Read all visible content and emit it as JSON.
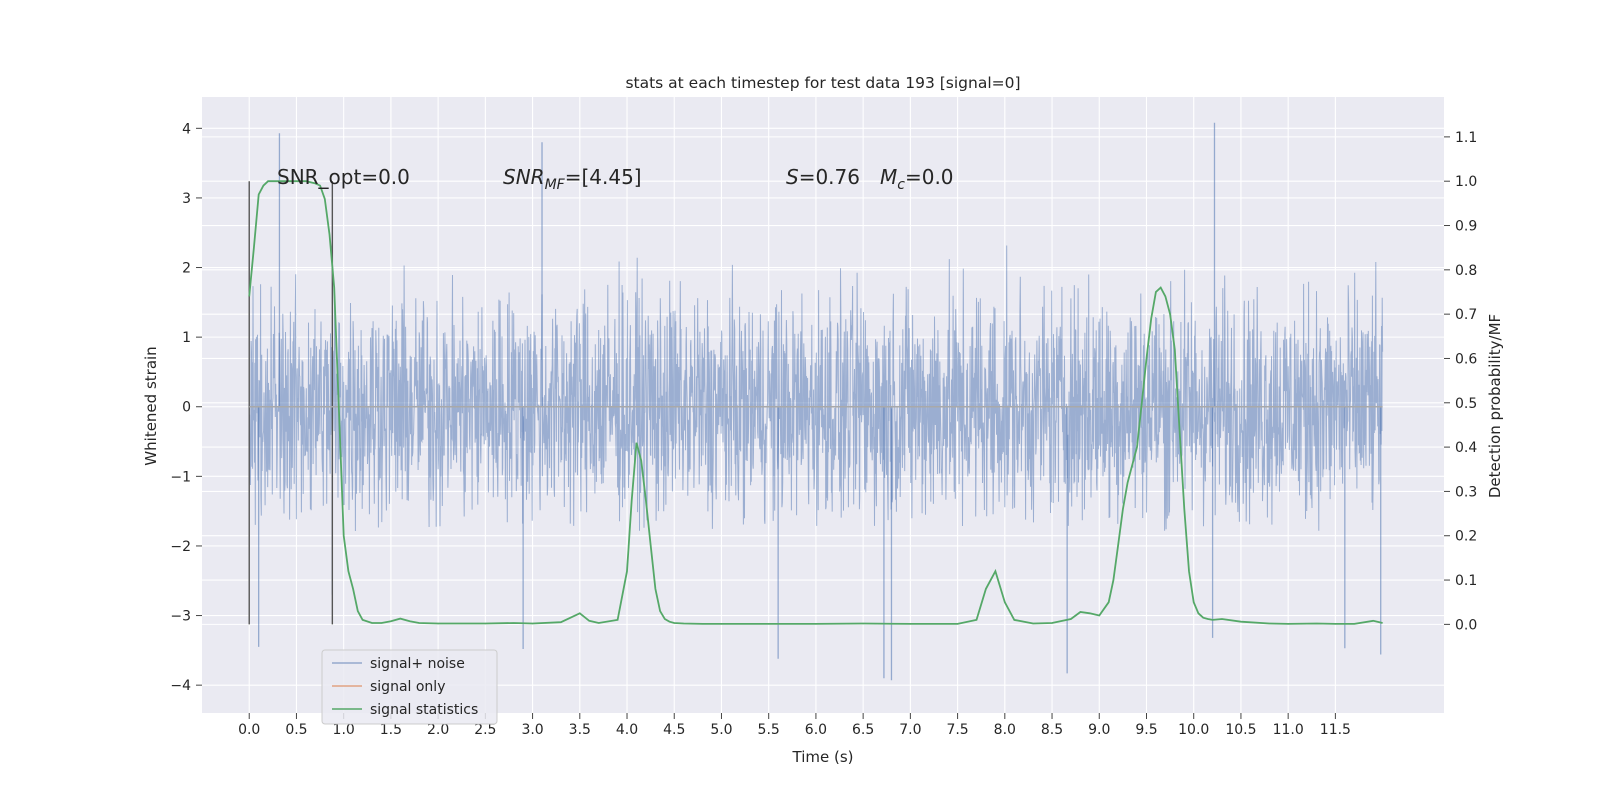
{
  "chart_data": {
    "type": "line",
    "title": "stats at each timestep for test data 193 [signal=0]",
    "xlabel": "Time (s)",
    "ylabel": "Whitened strain",
    "ylabel_right": "Detection probability/MF",
    "xlim": [
      -0.5,
      12.65
    ],
    "ylim": [
      -4.4,
      4.45
    ],
    "ylim_right": [
      -0.2,
      1.19
    ],
    "x_ticks": [
      "0.0",
      "0.5",
      "1.0",
      "1.5",
      "2.0",
      "2.5",
      "3.0",
      "3.5",
      "4.0",
      "4.5",
      "5.0",
      "5.5",
      "6.0",
      "6.5",
      "7.0",
      "7.5",
      "8.0",
      "8.5",
      "9.0",
      "9.5",
      "10.0",
      "10.5",
      "11.0",
      "11.5"
    ],
    "y_ticks": [
      "−4",
      "−3",
      "−2",
      "−1",
      "0",
      "1",
      "2",
      "3",
      "4"
    ],
    "y_ticks_right": [
      "0.0",
      "0.1",
      "0.2",
      "0.3",
      "0.4",
      "0.5",
      "0.6",
      "0.7",
      "0.8",
      "0.9",
      "1.0",
      "1.1"
    ],
    "grid": true,
    "legend_position": "lower-left",
    "annotations": {
      "snr_opt": "SNR_opt=0.0",
      "snr_mf_prefix": "SNR",
      "snr_mf_sub": "MF",
      "snr_mf_value": "=[4.45]",
      "s_label": "S",
      "s_value": "=0.76",
      "mc_label": "M",
      "mc_sub": "c",
      "mc_value": "=0.0"
    },
    "vertical_markers": [
      0.0,
      0.88
    ],
    "series": [
      {
        "name": "signal+ noise",
        "color": "#4c72b0",
        "axis": "left",
        "x_range": [
          0.0,
          12.0
        ],
        "y_typical_range": [
          -1.8,
          2.4
        ],
        "y_peaks": [
          {
            "x": 0.1,
            "y": -3.45
          },
          {
            "x": 0.32,
            "y": 3.93
          },
          {
            "x": 0.88,
            "y": -2.7
          },
          {
            "x": 2.9,
            "y": -3.48
          },
          {
            "x": 3.1,
            "y": 3.8
          },
          {
            "x": 5.6,
            "y": -3.62
          },
          {
            "x": 6.72,
            "y": -3.9
          },
          {
            "x": 6.8,
            "y": -3.93
          },
          {
            "x": 8.66,
            "y": -3.83
          },
          {
            "x": 10.2,
            "y": -3.32
          },
          {
            "x": 10.22,
            "y": 4.08
          },
          {
            "x": 11.6,
            "y": -3.47
          },
          {
            "x": 11.98,
            "y": -3.56
          }
        ]
      },
      {
        "name": "signal only",
        "color": "#dd8452",
        "axis": "left",
        "x": [
          0.0,
          12.0
        ],
        "y": [
          0.0,
          0.0
        ]
      },
      {
        "name": "signal statistics",
        "color": "#55a868",
        "axis": "right",
        "x": [
          0.0,
          0.05,
          0.1,
          0.15,
          0.2,
          0.3,
          0.4,
          0.5,
          0.6,
          0.7,
          0.75,
          0.8,
          0.85,
          0.9,
          0.95,
          1.0,
          1.05,
          1.1,
          1.15,
          1.2,
          1.3,
          1.4,
          1.5,
          1.6,
          1.7,
          1.8,
          2.0,
          2.5,
          2.8,
          3.0,
          3.3,
          3.5,
          3.6,
          3.7,
          3.9,
          4.0,
          4.05,
          4.1,
          4.15,
          4.2,
          4.25,
          4.3,
          4.35,
          4.4,
          4.45,
          4.5,
          4.6,
          4.8,
          5.0,
          6.0,
          6.5,
          7.0,
          7.5,
          7.7,
          7.8,
          7.9,
          8.0,
          8.1,
          8.3,
          8.5,
          8.7,
          8.8,
          8.9,
          9.0,
          9.1,
          9.15,
          9.2,
          9.25,
          9.3,
          9.35,
          9.4,
          9.45,
          9.5,
          9.55,
          9.6,
          9.65,
          9.7,
          9.75,
          9.8,
          9.85,
          9.9,
          9.95,
          10.0,
          10.05,
          10.1,
          10.15,
          10.2,
          10.3,
          10.5,
          10.8,
          11.0,
          11.3,
          11.5,
          11.7,
          11.9,
          12.0
        ],
        "y": [
          0.74,
          0.85,
          0.97,
          0.99,
          1.0,
          1.0,
          1.0,
          1.0,
          1.0,
          0.995,
          0.99,
          0.96,
          0.88,
          0.76,
          0.48,
          0.2,
          0.12,
          0.08,
          0.03,
          0.01,
          0.003,
          0.003,
          0.007,
          0.013,
          0.007,
          0.003,
          0.002,
          0.002,
          0.003,
          0.002,
          0.005,
          0.025,
          0.008,
          0.003,
          0.01,
          0.12,
          0.28,
          0.41,
          0.37,
          0.28,
          0.18,
          0.08,
          0.03,
          0.012,
          0.006,
          0.003,
          0.002,
          0.001,
          0.001,
          0.001,
          0.002,
          0.001,
          0.001,
          0.01,
          0.08,
          0.12,
          0.05,
          0.01,
          0.002,
          0.003,
          0.012,
          0.028,
          0.025,
          0.02,
          0.05,
          0.1,
          0.18,
          0.26,
          0.32,
          0.36,
          0.4,
          0.5,
          0.6,
          0.69,
          0.75,
          0.76,
          0.74,
          0.7,
          0.62,
          0.44,
          0.26,
          0.12,
          0.05,
          0.025,
          0.015,
          0.012,
          0.01,
          0.012,
          0.006,
          0.002,
          0.001,
          0.002,
          0.001,
          0.001,
          0.008,
          0.003
        ]
      }
    ]
  }
}
